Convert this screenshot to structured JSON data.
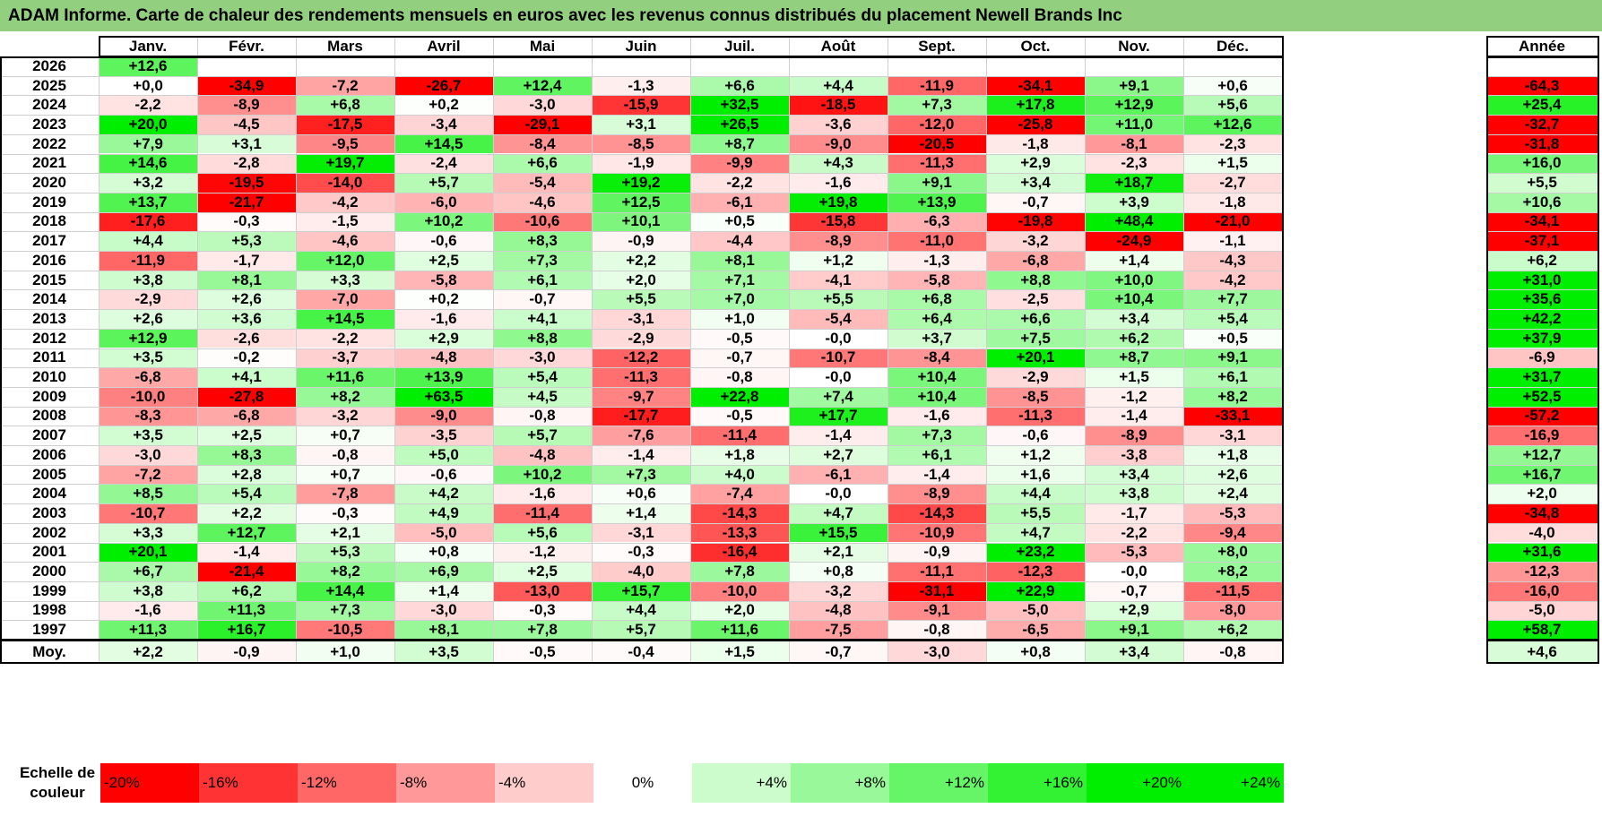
{
  "title": "ADAM Informe. Carte de chaleur des rendements mensuels en euros avec les revenus connus distribués du placement Newell Brands Inc",
  "chart_data": {
    "type": "heatmap",
    "months": [
      "Janv.",
      "Févr.",
      "Mars",
      "Avril",
      "Mai",
      "Juin",
      "Juil.",
      "Août",
      "Sept.",
      "Oct.",
      "Nov.",
      "Déc."
    ],
    "year_header": "Année",
    "rows": [
      {
        "year": "2026",
        "values": [
          "+12,6",
          null,
          null,
          null,
          null,
          null,
          null,
          null,
          null,
          null,
          null,
          null
        ],
        "annual": null
      },
      {
        "year": "2025",
        "values": [
          "+0,0",
          "-34,9",
          "-7,2",
          "-26,7",
          "+12,4",
          "-1,3",
          "+6,6",
          "+4,4",
          "-11,9",
          "-34,1",
          "+9,1",
          "+0,6"
        ],
        "annual": "-64,3"
      },
      {
        "year": "2024",
        "values": [
          "-2,2",
          "-8,9",
          "+6,8",
          "+0,2",
          "-3,0",
          "-15,9",
          "+32,5",
          "-18,5",
          "+7,3",
          "+17,8",
          "+12,9",
          "+5,6"
        ],
        "annual": "+25,4"
      },
      {
        "year": "2023",
        "values": [
          "+20,0",
          "-4,5",
          "-17,5",
          "-3,4",
          "-29,1",
          "+3,1",
          "+26,5",
          "-3,6",
          "-12,0",
          "-25,8",
          "+11,0",
          "+12,6"
        ],
        "annual": "-32,7"
      },
      {
        "year": "2022",
        "values": [
          "+7,9",
          "+3,1",
          "-9,5",
          "+14,5",
          "-8,4",
          "-8,5",
          "+8,7",
          "-9,0",
          "-20,5",
          "-1,8",
          "-8,1",
          "-2,3"
        ],
        "annual": "-31,8"
      },
      {
        "year": "2021",
        "values": [
          "+14,6",
          "-2,8",
          "+19,7",
          "-2,4",
          "+6,6",
          "-1,9",
          "-9,9",
          "+4,3",
          "-11,3",
          "+2,9",
          "-2,3",
          "+1,5"
        ],
        "annual": "+16,0"
      },
      {
        "year": "2020",
        "values": [
          "+3,2",
          "-19,5",
          "-14,0",
          "+5,7",
          "-5,4",
          "+19,2",
          "-2,2",
          "-1,6",
          "+9,1",
          "+3,4",
          "+18,7",
          "-2,7"
        ],
        "annual": "+5,5"
      },
      {
        "year": "2019",
        "values": [
          "+13,7",
          "-21,7",
          "-4,2",
          "-6,0",
          "-4,6",
          "+12,5",
          "-6,1",
          "+19,8",
          "+13,9",
          "-0,7",
          "+3,9",
          "-1,8"
        ],
        "annual": "+10,6"
      },
      {
        "year": "2018",
        "values": [
          "-17,6",
          "-0,3",
          "-1,5",
          "+10,2",
          "-10,6",
          "+10,1",
          "+0,5",
          "-15,8",
          "-6,3",
          "-19,8",
          "+48,4",
          "-21,0"
        ],
        "annual": "-34,1"
      },
      {
        "year": "2017",
        "values": [
          "+4,4",
          "+5,3",
          "-4,6",
          "-0,6",
          "+8,3",
          "-0,9",
          "-4,4",
          "-8,9",
          "-11,0",
          "-3,2",
          "-24,9",
          "-1,1"
        ],
        "annual": "-37,1"
      },
      {
        "year": "2016",
        "values": [
          "-11,9",
          "-1,7",
          "+12,0",
          "+2,5",
          "+7,3",
          "+2,2",
          "+8,1",
          "+1,2",
          "-1,3",
          "-6,8",
          "+1,4",
          "-4,3"
        ],
        "annual": "+6,2"
      },
      {
        "year": "2015",
        "values": [
          "+3,8",
          "+8,1",
          "+3,3",
          "-5,8",
          "+6,1",
          "+2,0",
          "+7,1",
          "-4,1",
          "-5,8",
          "+8,8",
          "+10,0",
          "-4,2"
        ],
        "annual": "+31,0"
      },
      {
        "year": "2014",
        "values": [
          "-2,9",
          "+2,6",
          "-7,0",
          "+0,2",
          "-0,7",
          "+5,5",
          "+7,0",
          "+5,5",
          "+6,8",
          "-2,5",
          "+10,4",
          "+7,7"
        ],
        "annual": "+35,6"
      },
      {
        "year": "2013",
        "values": [
          "+2,6",
          "+3,6",
          "+14,5",
          "-1,6",
          "+4,1",
          "-3,1",
          "+1,0",
          "-5,4",
          "+6,4",
          "+6,6",
          "+3,4",
          "+5,4"
        ],
        "annual": "+42,2"
      },
      {
        "year": "2012",
        "values": [
          "+12,9",
          "-2,6",
          "-2,2",
          "+2,9",
          "+8,8",
          "-2,9",
          "-0,5",
          "-0,0",
          "+3,7",
          "+7,5",
          "+6,2",
          "+0,5"
        ],
        "annual": "+37,9"
      },
      {
        "year": "2011",
        "values": [
          "+3,5",
          "-0,2",
          "-3,7",
          "-4,8",
          "-3,0",
          "-12,2",
          "-0,7",
          "-10,7",
          "-8,4",
          "+20,1",
          "+8,7",
          "+9,1"
        ],
        "annual": "-6,9"
      },
      {
        "year": "2010",
        "values": [
          "-6,8",
          "+4,1",
          "+11,6",
          "+13,9",
          "+5,4",
          "-11,3",
          "-0,8",
          "-0,0",
          "+10,4",
          "-2,9",
          "+1,5",
          "+6,1"
        ],
        "annual": "+31,7"
      },
      {
        "year": "2009",
        "values": [
          "-10,0",
          "-27,8",
          "+8,2",
          "+63,5",
          "+4,5",
          "-9,7",
          "+22,8",
          "+7,4",
          "+10,4",
          "-8,5",
          "-1,2",
          "+8,2"
        ],
        "annual": "+52,5"
      },
      {
        "year": "2008",
        "values": [
          "-8,3",
          "-6,8",
          "-3,2",
          "-9,0",
          "-0,8",
          "-17,7",
          "-0,5",
          "+17,7",
          "-1,6",
          "-11,3",
          "-1,4",
          "-33,1"
        ],
        "annual": "-57,2"
      },
      {
        "year": "2007",
        "values": [
          "+3,5",
          "+2,5",
          "+0,7",
          "-3,5",
          "+5,7",
          "-7,6",
          "-11,4",
          "-1,4",
          "+7,3",
          "-0,6",
          "-8,9",
          "-3,1"
        ],
        "annual": "-16,9"
      },
      {
        "year": "2006",
        "values": [
          "-3,0",
          "+8,3",
          "-0,8",
          "+5,0",
          "-4,8",
          "-1,4",
          "+1,8",
          "+2,7",
          "+6,1",
          "+1,2",
          "-3,8",
          "+1,8"
        ],
        "annual": "+12,7"
      },
      {
        "year": "2005",
        "values": [
          "-7,2",
          "+2,8",
          "+0,7",
          "-0,6",
          "+10,2",
          "+7,3",
          "+4,0",
          "-6,1",
          "-1,4",
          "+1,6",
          "+3,4",
          "+2,6"
        ],
        "annual": "+16,7"
      },
      {
        "year": "2004",
        "values": [
          "+8,5",
          "+5,4",
          "-7,8",
          "+4,2",
          "-1,6",
          "+0,6",
          "-7,4",
          "-0,0",
          "-8,9",
          "+4,4",
          "+3,8",
          "+2,4"
        ],
        "annual": "+2,0"
      },
      {
        "year": "2003",
        "values": [
          "-10,7",
          "+2,2",
          "-0,3",
          "+4,9",
          "-11,4",
          "+1,4",
          "-14,3",
          "+4,7",
          "-14,3",
          "+5,5",
          "-1,7",
          "-5,3"
        ],
        "annual": "-34,8"
      },
      {
        "year": "2002",
        "values": [
          "+3,3",
          "+12,7",
          "+2,1",
          "-5,0",
          "+5,6",
          "-3,1",
          "-13,3",
          "+15,5",
          "-10,9",
          "+4,7",
          "-2,2",
          "-9,4"
        ],
        "annual": "-4,0"
      },
      {
        "year": "2001",
        "values": [
          "+20,1",
          "-1,4",
          "+5,3",
          "+0,8",
          "-1,2",
          "-0,3",
          "-16,4",
          "+2,1",
          "-0,9",
          "+23,2",
          "-5,3",
          "+8,0"
        ],
        "annual": "+31,6"
      },
      {
        "year": "2000",
        "values": [
          "+6,7",
          "-21,4",
          "+8,2",
          "+6,9",
          "+2,5",
          "-4,0",
          "+7,8",
          "+0,8",
          "-11,1",
          "-12,3",
          "-0,0",
          "+8,2"
        ],
        "annual": "-12,3"
      },
      {
        "year": "1999",
        "values": [
          "+3,8",
          "+6,2",
          "+14,4",
          "+1,4",
          "-13,0",
          "+15,7",
          "-10,0",
          "-3,2",
          "-31,1",
          "+22,9",
          "-0,7",
          "-11,5"
        ],
        "annual": "-16,0"
      },
      {
        "year": "1998",
        "values": [
          "-1,6",
          "+11,3",
          "+7,3",
          "-3,0",
          "-0,3",
          "+4,4",
          "+2,0",
          "-4,8",
          "-9,1",
          "-5,0",
          "+2,9",
          "-8,0"
        ],
        "annual": "-5,0"
      },
      {
        "year": "1997",
        "values": [
          "+11,3",
          "+16,7",
          "-10,5",
          "+8,1",
          "+7,8",
          "+5,7",
          "+11,6",
          "-7,5",
          "-0,8",
          "-6,5",
          "+9,1",
          "+6,2"
        ],
        "annual": "+58,7"
      }
    ],
    "average": {
      "label": "Moy.",
      "values": [
        "+2,2",
        "-0,9",
        "+1,0",
        "+3,5",
        "-0,5",
        "-0,4",
        "+1,5",
        "-0,7",
        "-3,0",
        "+0,8",
        "+3,4",
        "-0,8"
      ],
      "annual": "+4,6"
    },
    "scale": {
      "label": "Echelle de couleur",
      "stops": [
        {
          "label": "-20%",
          "value": -20,
          "align": "left"
        },
        {
          "label": "-16%",
          "value": -16,
          "align": "left"
        },
        {
          "label": "-12%",
          "value": -12,
          "align": "left"
        },
        {
          "label": "-8%",
          "value": -8,
          "align": "left"
        },
        {
          "label": "-4%",
          "value": -4,
          "align": "left"
        },
        {
          "label": "0%",
          "value": 0,
          "align": "center"
        },
        {
          "label": "+4%",
          "value": 4,
          "align": "right"
        },
        {
          "label": "+8%",
          "value": 8,
          "align": "right"
        },
        {
          "label": "+12%",
          "value": 12,
          "align": "right"
        },
        {
          "label": "+16%",
          "value": 16,
          "align": "right"
        },
        {
          "label": "+20%",
          "value": 20,
          "align": "right"
        },
        {
          "label": "+24%",
          "value": 24,
          "align": "right"
        }
      ]
    },
    "colors": {
      "neg_max": "#ff0000",
      "zero": "#ffffff",
      "pos_max": "#00ee00",
      "title_bg": "#92cf7f"
    }
  }
}
